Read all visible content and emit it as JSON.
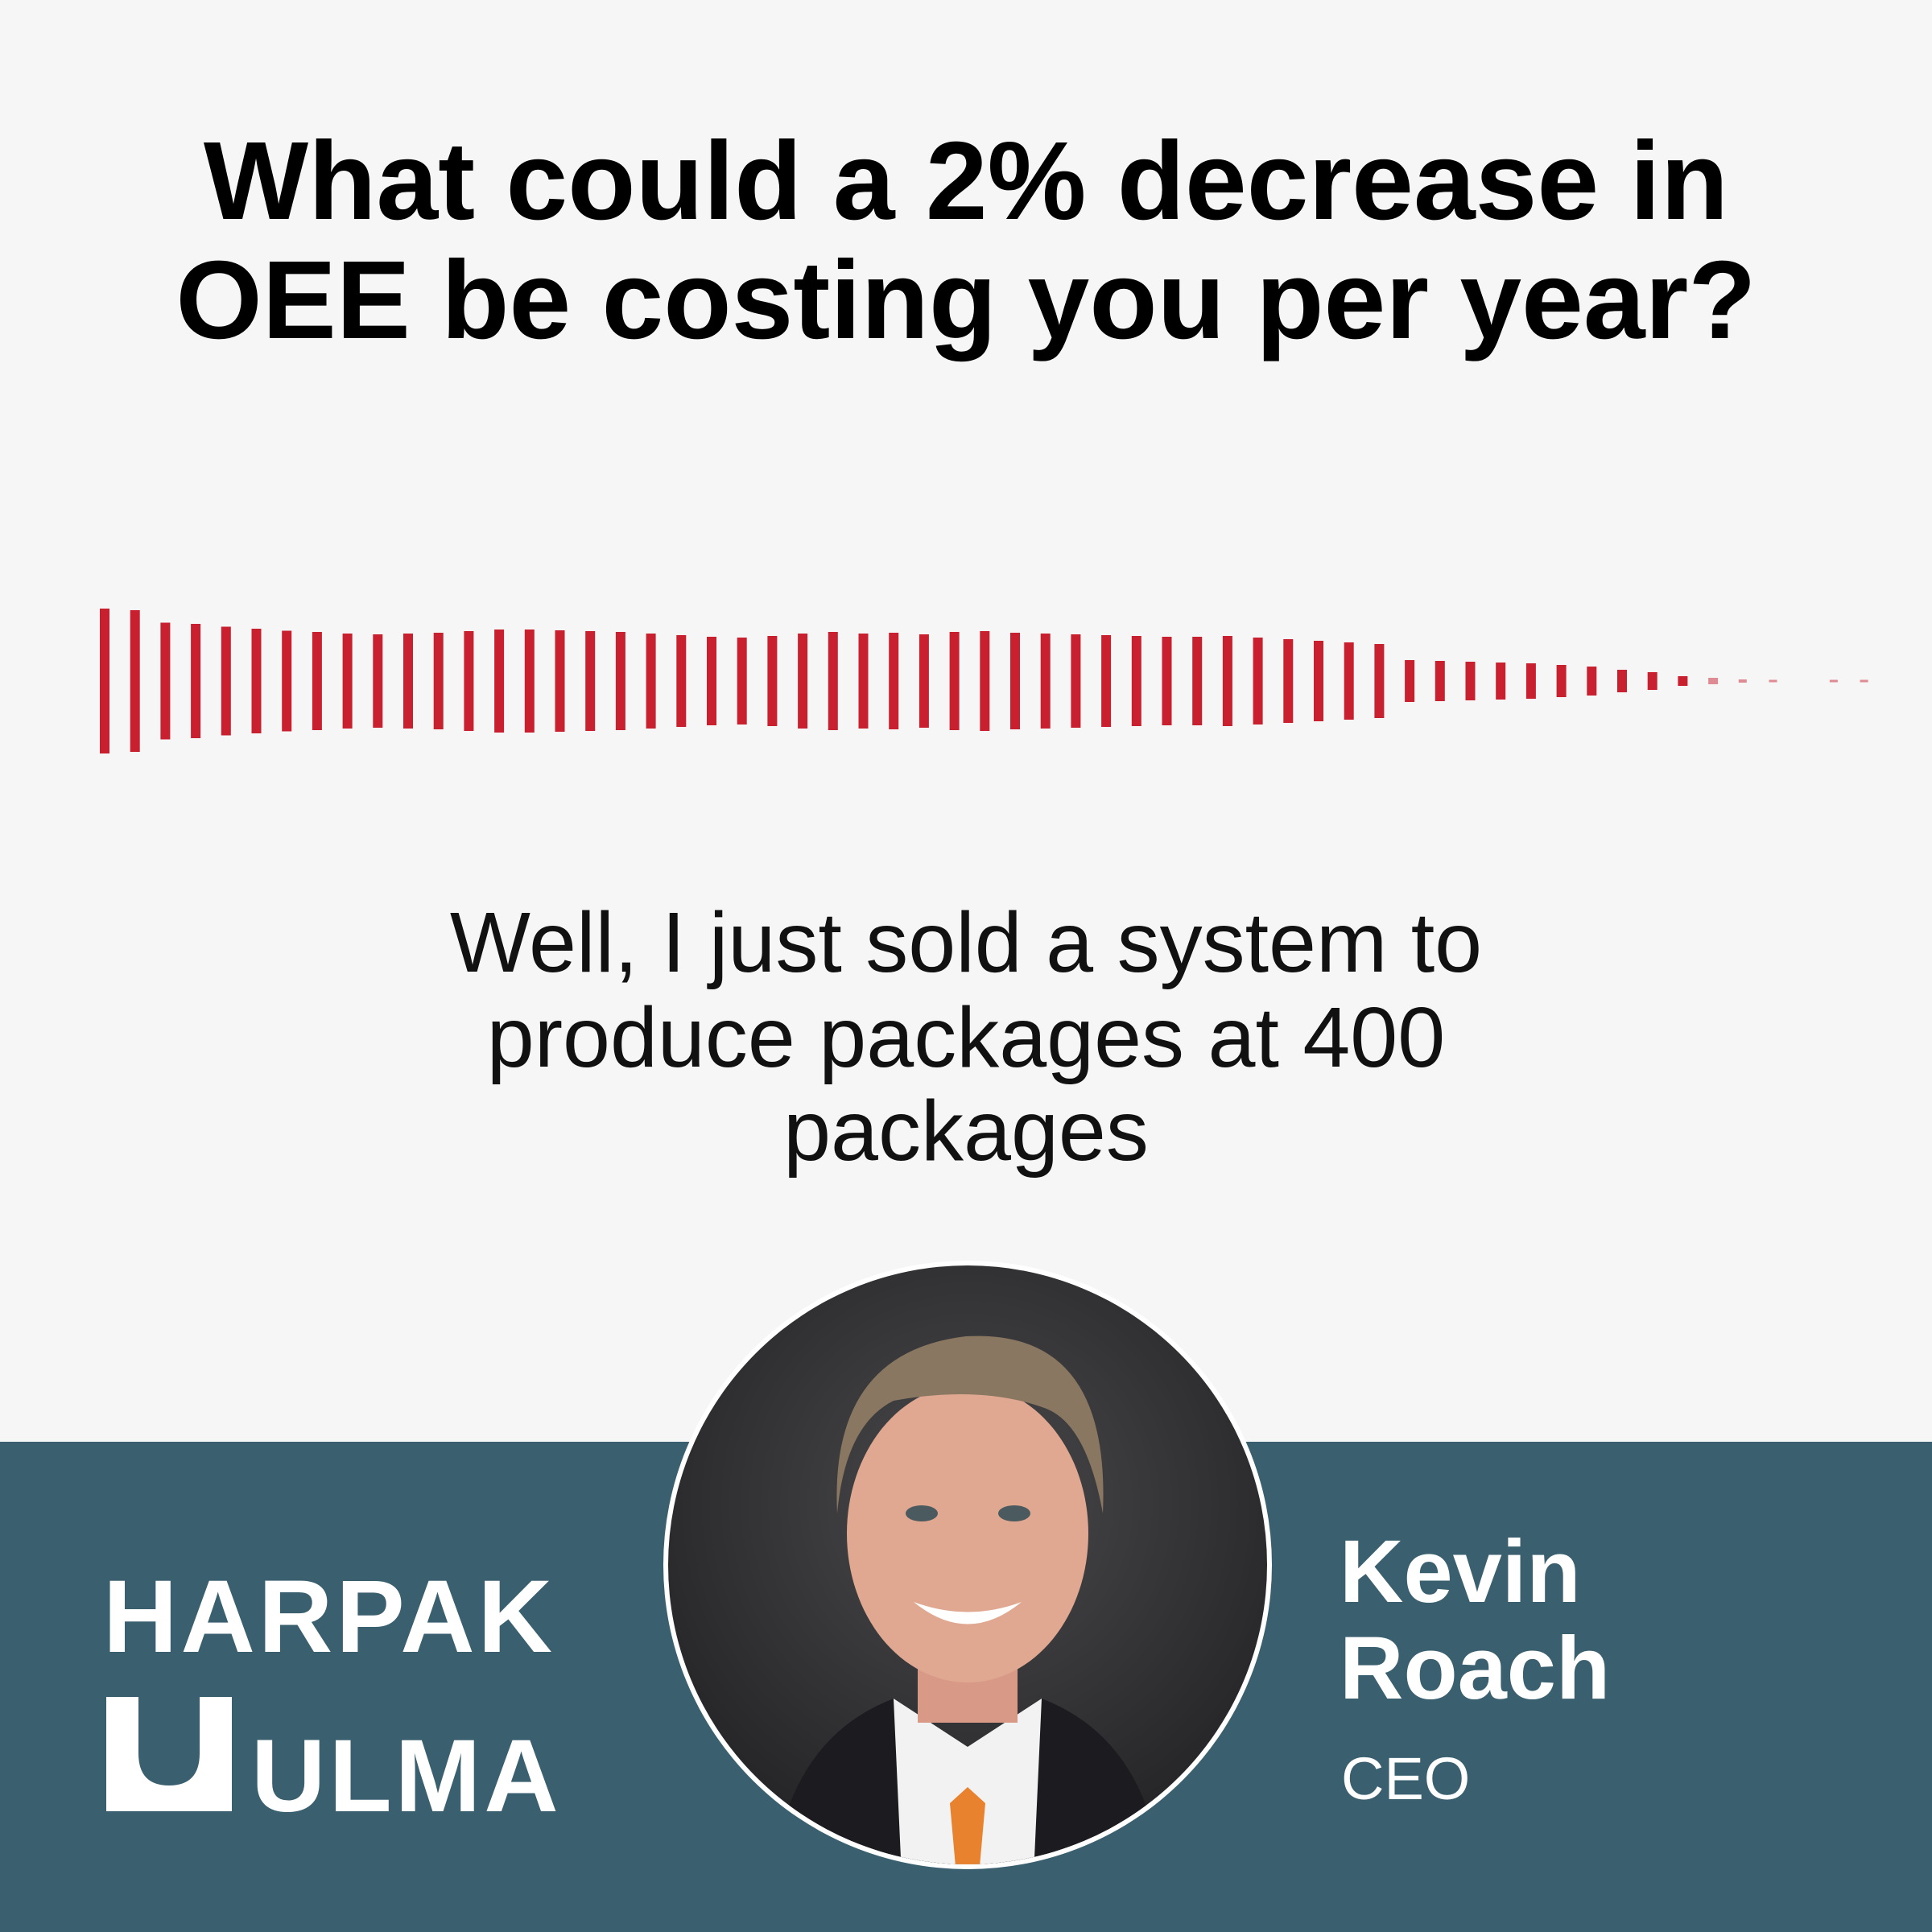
{
  "title_lines": [
    "What could a 2% decrease in",
    "OEE be costing you per year?"
  ],
  "caption_lines": [
    "Well, I just sold a system to",
    "produce packages at 400",
    "packages"
  ],
  "logo": {
    "line1": "HARPAK",
    "line2": "ULMA"
  },
  "speaker": {
    "name_lines": [
      "Kevin",
      "Roach"
    ],
    "role": "CEO"
  }
}
